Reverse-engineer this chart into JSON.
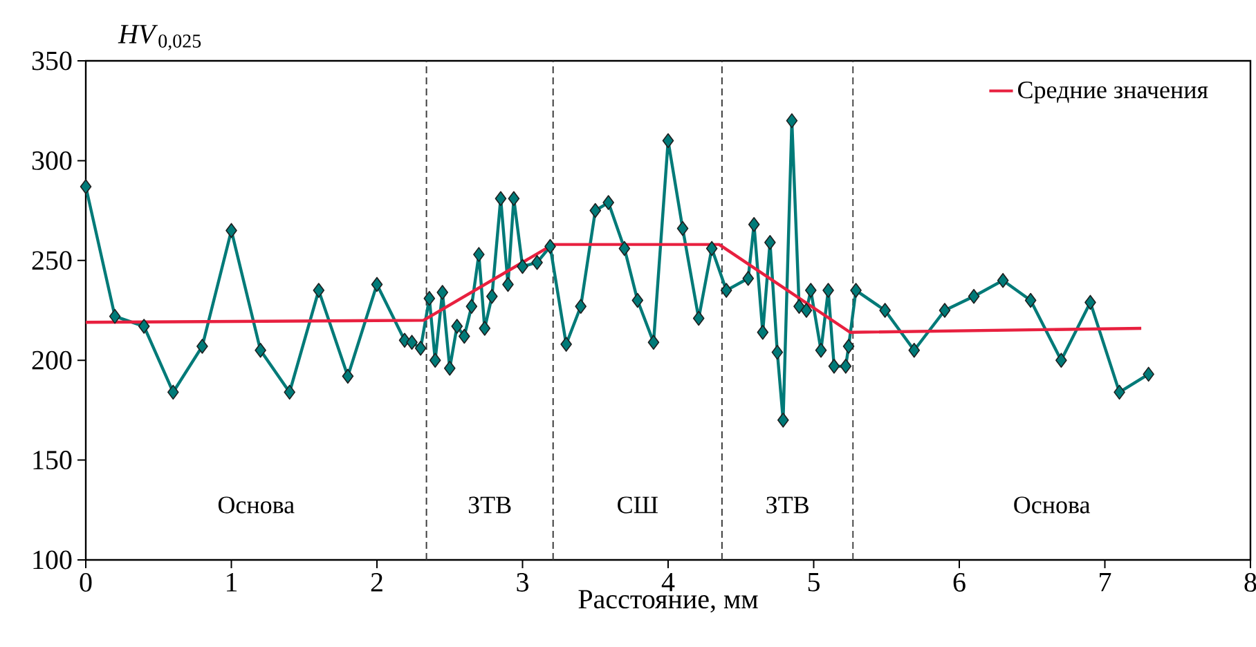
{
  "chart_data": {
    "type": "line",
    "xlabel": "Расстояние, мм",
    "ylabel": "*HV*$_{0,025}$",
    "xlim": [
      0,
      8
    ],
    "xticks": [
      0,
      1,
      2,
      3,
      4,
      5,
      6,
      7,
      8
    ],
    "ylim": [
      100,
      350
    ],
    "yticks": [
      100,
      150,
      200,
      250,
      300,
      350
    ],
    "grid": false,
    "legend": "top right",
    "series": [
      {
        "color": "#007a78",
        "marker": "diamond",
        "x": [
          0,
          0.2,
          0.4,
          0.6,
          0.8,
          1.0,
          1.2,
          1.4,
          1.6,
          1.8,
          2.0,
          2.19,
          2.24,
          2.3,
          2.36,
          2.4,
          2.45,
          2.5,
          2.55,
          2.6,
          2.65,
          2.7,
          2.74,
          2.79,
          2.85,
          2.9,
          2.94,
          3.0,
          3.1,
          3.19,
          3.3,
          3.4,
          3.5,
          3.59,
          3.7,
          3.79,
          3.9,
          4.0,
          4.1,
          4.21,
          4.3,
          4.4,
          4.55,
          4.59,
          4.65,
          4.7,
          4.75,
          4.79,
          4.85,
          4.9,
          4.95,
          4.98,
          5.05,
          5.1,
          5.14,
          5.22,
          5.24,
          5.29,
          5.49,
          5.69,
          5.9,
          6.1,
          6.3,
          6.49,
          6.7,
          6.9,
          7.1,
          7.3
        ],
        "values": [
          287,
          222,
          217,
          184,
          207,
          265,
          205,
          184,
          235,
          192,
          238,
          210,
          209,
          206,
          231,
          200,
          234,
          196,
          217,
          212,
          227,
          253,
          216,
          232,
          281,
          238,
          281,
          247,
          249,
          257,
          208,
          227,
          275,
          279,
          256,
          230,
          209,
          310,
          266,
          221,
          256,
          235,
          241,
          268,
          214,
          259,
          204,
          170,
          320,
          227,
          225,
          235,
          205,
          235,
          197,
          197,
          207,
          235,
          225,
          205,
          225,
          232,
          240,
          230,
          200,
          229,
          184,
          193
        ]
      },
      {
        "name": "Средние значения",
        "color": "#e8203f",
        "marker": "none",
        "x": [
          0,
          2.32,
          3.21,
          4.35,
          5.25,
          7.25
        ],
        "values": [
          219,
          220,
          258,
          258,
          214,
          216
        ]
      }
    ],
    "ref_lines": [
      {
        "axis": "x",
        "value": 2.34,
        "line_style": "dashed"
      },
      {
        "axis": "x",
        "value": 3.21,
        "line_style": "dashed"
      },
      {
        "axis": "x",
        "value": 4.37,
        "line_style": "dashed"
      },
      {
        "axis": "x",
        "value": 5.27,
        "line_style": "dashed"
      }
    ],
    "annotations": [
      "Основа",
      "ЗТВ",
      "СШ",
      "ЗТВ",
      "Основа"
    ]
  }
}
